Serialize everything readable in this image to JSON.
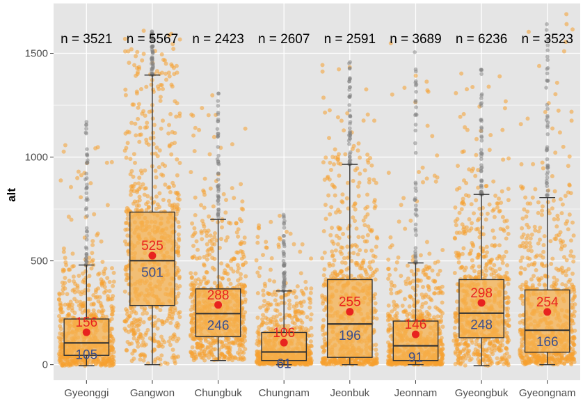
{
  "chart_data": {
    "type": "boxplot",
    "title": "",
    "xlabel": "",
    "ylabel": "alt",
    "ylim": [
      -75,
      1740
    ],
    "yticks": [
      0,
      500,
      1000,
      1500
    ],
    "ytick_labels": [
      "0",
      "500",
      "1000",
      "1500"
    ],
    "categories": [
      "Gyeonggi",
      "Gangwon",
      "Chungbuk",
      "Chungnam",
      "Jeonbuk",
      "Jeonnam",
      "Gyeongbuk",
      "Gyeongnam"
    ],
    "n_prefix": "n = ",
    "n_values": [
      "3521",
      "5567",
      "2423",
      "2607",
      "2591",
      "3689",
      "6236",
      "3523"
    ],
    "boxes": [
      {
        "q1": 45,
        "median": 105,
        "q3": 220,
        "whisker_low": -5,
        "whisker_high": 480,
        "mean": 156,
        "mean_label": "156",
        "median_label": "105",
        "point_max": 1175
      },
      {
        "q1": 285,
        "median": 501,
        "q3": 735,
        "whisker_low": 0,
        "whisker_high": 1395,
        "mean": 525,
        "mean_label": "525",
        "median_label": "501",
        "point_max": 1610
      },
      {
        "q1": 135,
        "median": 246,
        "q3": 365,
        "whisker_low": 20,
        "whisker_high": 700,
        "mean": 288,
        "mean_label": "288",
        "median_label": "246",
        "point_max": 1320
      },
      {
        "q1": 20,
        "median": 61,
        "q3": 155,
        "whisker_low": 0,
        "whisker_high": 355,
        "mean": 106,
        "mean_label": "106",
        "median_label": "61",
        "point_max": 735
      },
      {
        "q1": 35,
        "median": 196,
        "q3": 410,
        "whisker_low": 0,
        "whisker_high": 965,
        "mean": 255,
        "mean_label": "255",
        "median_label": "196",
        "point_max": 1465
      },
      {
        "q1": 20,
        "median": 91,
        "q3": 210,
        "whisker_low": 0,
        "whisker_high": 490,
        "mean": 146,
        "mean_label": "146",
        "median_label": "91",
        "point_max": 1600
      },
      {
        "q1": 130,
        "median": 248,
        "q3": 410,
        "whisker_low": -5,
        "whisker_high": 820,
        "mean": 298,
        "mean_label": "298",
        "median_label": "248",
        "point_max": 1430
      },
      {
        "q1": 60,
        "median": 166,
        "q3": 360,
        "whisker_low": 0,
        "whisker_high": 805,
        "mean": 254,
        "mean_label": "254",
        "median_label": "166",
        "point_max": 1740
      }
    ],
    "colors": {
      "panel_bg": "#e5e5e5",
      "grid": "#ffffff",
      "points": "#f5a030",
      "outliers": "#7f7f7f",
      "box_fill": "#f6b04e",
      "box_stroke": "#333333",
      "mean_point": "#e8231f",
      "mean_label": "#e8231f",
      "median_label": "#3a4e8c",
      "tick_text": "#4d4d4d"
    }
  }
}
